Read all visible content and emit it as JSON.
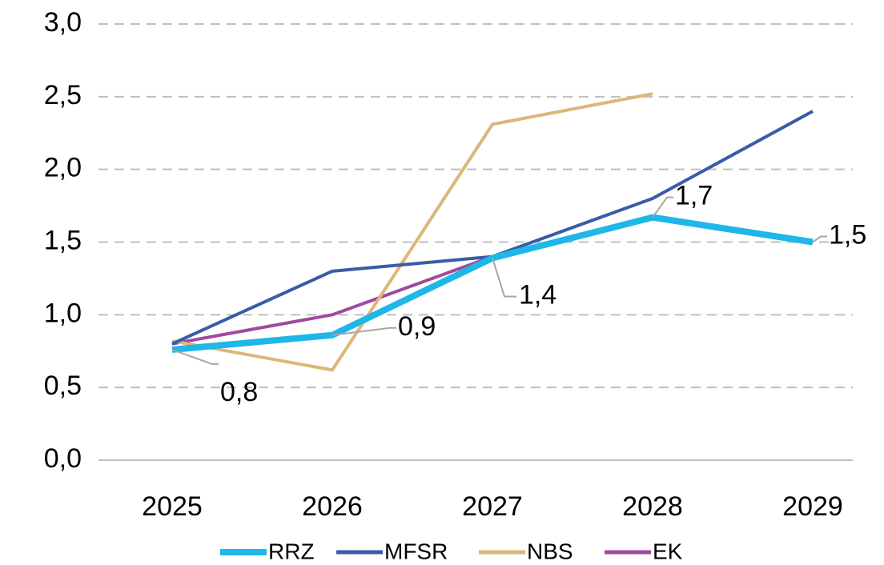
{
  "chart_data": {
    "type": "line",
    "categories": [
      "2025",
      "2026",
      "2027",
      "2028",
      "2029"
    ],
    "series": [
      {
        "name": "RRZ",
        "color": "#1fb6e8",
        "values": [
          0.76,
          0.86,
          1.39,
          1.67,
          1.5
        ],
        "value_labels": [
          "0,8",
          "0,9",
          "1,4",
          "1,7",
          "1,5"
        ]
      },
      {
        "name": "MFSR",
        "color": "#3a5ba7",
        "values": [
          0.8,
          1.3,
          1.4,
          1.8,
          2.4
        ]
      },
      {
        "name": "NBS",
        "color": "#ddb679",
        "values": [
          0.82,
          0.62,
          2.31,
          2.52,
          null
        ]
      },
      {
        "name": "EK",
        "color": "#a04a9e",
        "values": [
          0.8,
          1.0,
          1.4,
          null,
          null
        ]
      }
    ],
    "ylim": [
      0,
      3
    ],
    "yticks": [
      {
        "value": 0,
        "label": "0,0"
      },
      {
        "value": 0.5,
        "label": "0,5"
      },
      {
        "value": 1,
        "label": "1,0"
      },
      {
        "value": 1.5,
        "label": "1,5"
      },
      {
        "value": 2,
        "label": "2,0"
      },
      {
        "value": 2.5,
        "label": "2,5"
      },
      {
        "value": 3,
        "label": "3,0"
      }
    ],
    "grid": true,
    "legend": "bottom"
  }
}
